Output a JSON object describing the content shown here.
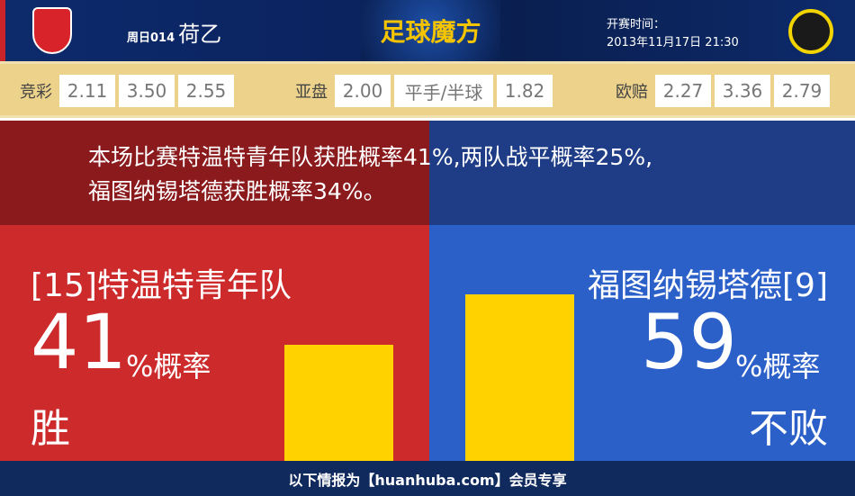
{
  "header": {
    "match_no": "周日014",
    "league": "荷乙",
    "brand": "足球魔方",
    "time_label": "开赛时间：",
    "time": "2013年11月17日 21:30",
    "home_logo": "FC Twente crest",
    "away_logo": "Fortuna Sittard crest"
  },
  "odds": {
    "jingcai": {
      "label": "竞彩",
      "values": [
        "2.11",
        "3.50",
        "2.55"
      ]
    },
    "yapan": {
      "label": "亚盘",
      "values": [
        "2.00",
        "平手/半球",
        "1.82"
      ]
    },
    "oupei": {
      "label": "欧赔",
      "values": [
        "2.27",
        "3.36",
        "2.79"
      ]
    }
  },
  "message": {
    "line1": "本场比赛特温特青年队获胜概率41%,两队战平概率25%,",
    "line2": "福图纳锡塔德获胜概率34%。"
  },
  "home": {
    "team": "[15]特温特青年队",
    "pct": "41",
    "unit": "%概率",
    "result": "胜",
    "bar_value": 41,
    "color": "#cc2a2b"
  },
  "away": {
    "team": "福图纳锡塔德[9]",
    "pct": "59",
    "unit": "%概率",
    "result": "不败",
    "bar_value": 59,
    "color": "#2c60c9"
  },
  "footer": {
    "text": "以下情报为【huanhuba.com】会员专享"
  }
}
